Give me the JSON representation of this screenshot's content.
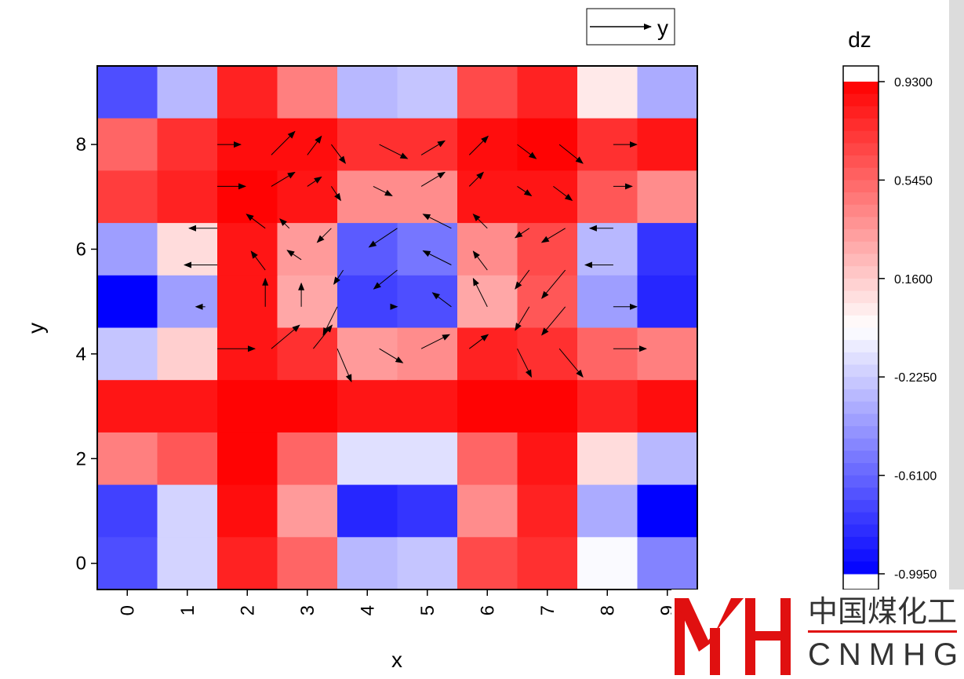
{
  "chart_data": {
    "type": "heatmap",
    "subtype": "heatmap with vector field overlay",
    "xlabel": "x",
    "ylabel": "y",
    "x_categories": [
      "0",
      "1",
      "2",
      "3",
      "4",
      "5",
      "6",
      "7",
      "8",
      "9"
    ],
    "y_ticks": [
      "0",
      "2",
      "4",
      "6",
      "8"
    ],
    "xlim": [
      -0.5,
      9.5
    ],
    "ylim": [
      -0.5,
      9.5
    ],
    "z_rows_top_to_bottom": [
      [
        -0.7,
        -0.3,
        0.8,
        0.45,
        -0.3,
        -0.25,
        0.65,
        0.8,
        0.05,
        -0.35
      ],
      [
        0.55,
        0.75,
        0.88,
        0.88,
        0.75,
        0.75,
        0.88,
        0.92,
        0.75,
        0.85
      ],
      [
        0.7,
        0.8,
        0.92,
        0.85,
        0.4,
        0.4,
        0.85,
        0.85,
        0.6,
        0.4
      ],
      [
        -0.4,
        0.1,
        0.85,
        0.35,
        -0.65,
        -0.55,
        0.4,
        0.65,
        -0.3,
        -0.8
      ],
      [
        -0.99,
        -0.4,
        0.85,
        0.3,
        -0.75,
        -0.7,
        0.3,
        0.6,
        -0.4,
        -0.85
      ],
      [
        -0.25,
        0.15,
        0.85,
        0.75,
        0.35,
        0.4,
        0.8,
        0.75,
        0.55,
        0.45
      ],
      [
        0.85,
        0.85,
        0.92,
        0.92,
        0.85,
        0.85,
        0.92,
        0.92,
        0.8,
        0.88
      ],
      [
        0.45,
        0.6,
        0.92,
        0.55,
        -0.15,
        -0.15,
        0.55,
        0.85,
        0.1,
        -0.3
      ],
      [
        -0.75,
        -0.2,
        0.88,
        0.35,
        -0.85,
        -0.8,
        0.4,
        0.8,
        -0.35,
        -0.99
      ],
      [
        -0.7,
        -0.2,
        0.8,
        0.55,
        -0.3,
        -0.25,
        0.65,
        0.75,
        -0.05,
        -0.5
      ]
    ],
    "vector_legend": {
      "label": "y"
    },
    "colorbar": {
      "title": "dz",
      "min": -0.995,
      "max": 0.93,
      "tick_labels": [
        "0.9300",
        "0.5450",
        "0.1600",
        "-0.2250",
        "-0.6100",
        "-0.9950"
      ],
      "tick_values": [
        0.93,
        0.545,
        0.16,
        -0.225,
        -0.61,
        -0.995
      ],
      "min_color": "#0000ff",
      "mid_color": "#ffffff",
      "max_color": "#ff0000"
    },
    "vectors": [
      [
        1.5,
        8,
        0.5,
        0
      ],
      [
        2.4,
        7.8,
        0.5,
        0.5
      ],
      [
        3,
        7.8,
        0.3,
        0.4
      ],
      [
        3.4,
        8,
        0.3,
        -0.4
      ],
      [
        4.2,
        8,
        0.6,
        -0.3
      ],
      [
        4.9,
        7.8,
        0.5,
        0.3
      ],
      [
        5.7,
        7.8,
        0.4,
        0.4
      ],
      [
        6.5,
        8,
        0.4,
        -0.3
      ],
      [
        7.2,
        8,
        0.5,
        -0.4
      ],
      [
        8.1,
        8,
        0.5,
        0
      ],
      [
        1.5,
        7.2,
        0.6,
        0
      ],
      [
        2.4,
        7.2,
        0.5,
        0.3
      ],
      [
        3,
        7.2,
        0.3,
        0.2
      ],
      [
        3.4,
        7.2,
        0.2,
        -0.3
      ],
      [
        4.1,
        7.2,
        0.4,
        -0.2
      ],
      [
        4.9,
        7.2,
        0.5,
        0.3
      ],
      [
        5.7,
        7.2,
        0.3,
        0.3
      ],
      [
        6.5,
        7.2,
        0.3,
        -0.2
      ],
      [
        7.1,
        7.2,
        0.4,
        -0.3
      ],
      [
        8.1,
        7.2,
        0.4,
        0
      ],
      [
        1.5,
        6.4,
        -0.6,
        0
      ],
      [
        2.3,
        6.4,
        -0.4,
        0.3
      ],
      [
        2.7,
        6.4,
        -0.2,
        0.2
      ],
      [
        3.4,
        6.4,
        -0.3,
        -0.3
      ],
      [
        4.5,
        6.4,
        -0.6,
        -0.4
      ],
      [
        5.4,
        6.4,
        -0.6,
        0.3
      ],
      [
        6,
        6.4,
        -0.3,
        0.3
      ],
      [
        6.7,
        6.4,
        -0.3,
        -0.2
      ],
      [
        7.3,
        6.4,
        -0.5,
        -0.3
      ],
      [
        8.1,
        6.4,
        -0.5,
        0
      ],
      [
        1.5,
        5.7,
        -0.7,
        0
      ],
      [
        2.3,
        5.6,
        -0.3,
        0.4
      ],
      [
        2.9,
        5.8,
        -0.3,
        0.2
      ],
      [
        3.6,
        5.6,
        -0.2,
        -0.3
      ],
      [
        4.5,
        5.6,
        -0.5,
        -0.4
      ],
      [
        5.4,
        5.7,
        -0.6,
        0.3
      ],
      [
        6,
        5.6,
        -0.3,
        0.4
      ],
      [
        6.7,
        5.6,
        -0.3,
        -0.4
      ],
      [
        7.3,
        5.6,
        -0.5,
        -0.6
      ],
      [
        8.1,
        5.7,
        -0.6,
        0
      ],
      [
        1.3,
        4.9,
        -0.2,
        0
      ],
      [
        2.3,
        4.9,
        0,
        0.6
      ],
      [
        2.9,
        4.9,
        0,
        0.5
      ],
      [
        3.5,
        4.9,
        -0.3,
        -0.6
      ],
      [
        4.5,
        4.9,
        0,
        0
      ],
      [
        5.4,
        4.9,
        -0.4,
        0.3
      ],
      [
        6,
        4.9,
        -0.3,
        0.6
      ],
      [
        6.7,
        4.9,
        -0.3,
        -0.5
      ],
      [
        7.3,
        4.9,
        -0.5,
        -0.6
      ],
      [
        8.1,
        4.9,
        0.5,
        0
      ],
      [
        1.5,
        4.1,
        0.8,
        0
      ],
      [
        2.4,
        4.1,
        0.6,
        0.5
      ],
      [
        3.1,
        4.1,
        0.4,
        0.5
      ],
      [
        3.5,
        4.1,
        0.3,
        -0.7
      ],
      [
        4.2,
        4.1,
        0.5,
        -0.3
      ],
      [
        4.9,
        4.1,
        0.6,
        0.3
      ],
      [
        5.7,
        4.1,
        0.4,
        0.3
      ],
      [
        6.5,
        4.1,
        0.3,
        -0.6
      ],
      [
        7.2,
        4.1,
        0.5,
        -0.6
      ],
      [
        8.1,
        4.1,
        0.7,
        0
      ]
    ]
  }
}
